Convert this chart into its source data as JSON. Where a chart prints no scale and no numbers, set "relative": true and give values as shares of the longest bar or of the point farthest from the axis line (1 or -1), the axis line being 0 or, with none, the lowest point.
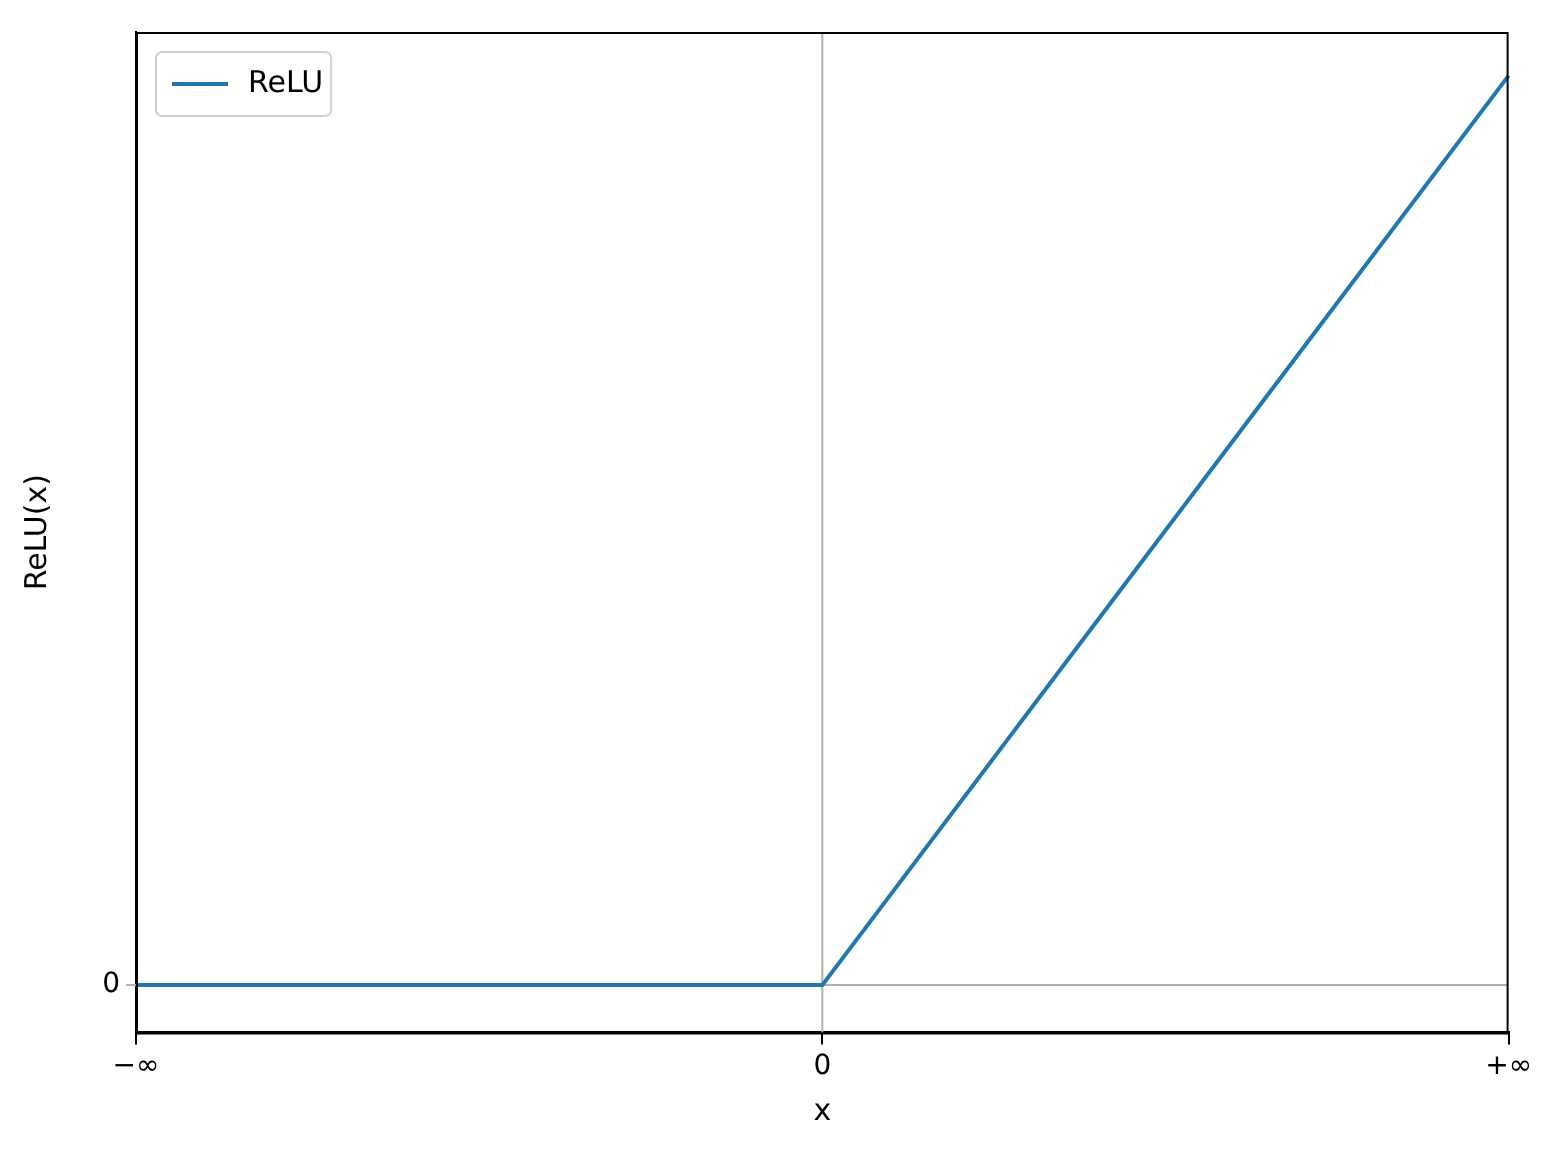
{
  "chart_data": {
    "type": "line",
    "xlabel": "x",
    "ylabel": "ReLU(x)",
    "categories": [
      "−∞",
      "0",
      "+∞"
    ],
    "series": [
      {
        "name": "ReLU",
        "color": "#1f77b4",
        "values": [
          0,
          0,
          1
        ]
      }
    ],
    "relative": true,
    "ref_lines": [
      {
        "axis": "x",
        "value": "0",
        "color": "#b0b0b0"
      },
      {
        "axis": "y",
        "value": 0,
        "label": "0",
        "color": "#b0b0b0"
      }
    ],
    "grid": false,
    "legend": "top left",
    "marker": "none",
    "line_style": "solid"
  }
}
